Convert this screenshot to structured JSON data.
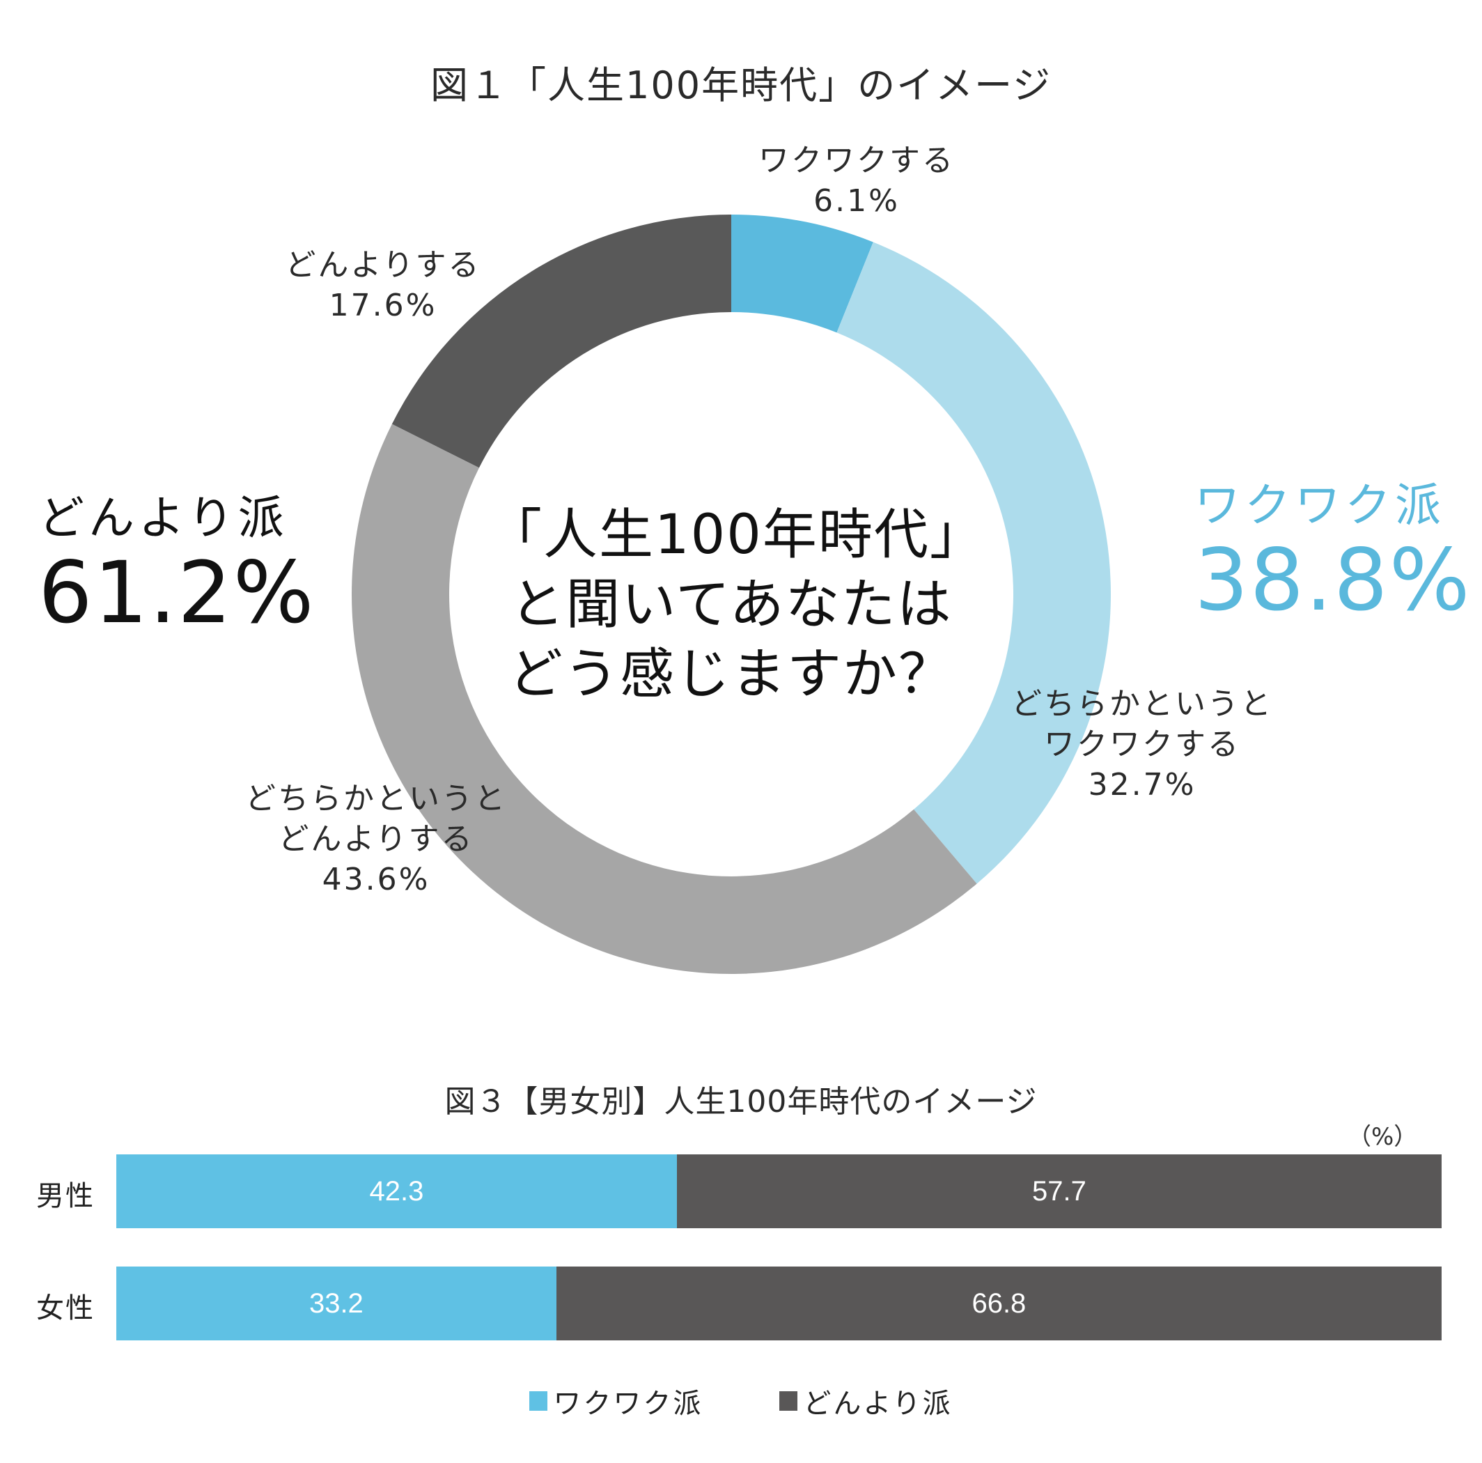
{
  "figure1": {
    "title": "図１「人生100年時代」のイメージ",
    "center_question": [
      "「人生100年時代」",
      "と聞いてあなたは",
      "どう感じますか？"
    ],
    "slices": [
      {
        "label_lines": [
          "ワクワクする"
        ],
        "pct": "6.1%",
        "value": 6.1,
        "color": "#5bbade"
      },
      {
        "label_lines": [
          "どちらかというと",
          "ワクワクする"
        ],
        "pct": "32.7%",
        "value": 32.7,
        "color": "#addcec"
      },
      {
        "label_lines": [
          "どちらかというと",
          "どんよりする"
        ],
        "pct": "43.6%",
        "value": 43.6,
        "color": "#a6a6a6"
      },
      {
        "label_lines": [
          "どんよりする"
        ],
        "pct": "17.6%",
        "value": 17.6,
        "color": "#595959"
      }
    ],
    "groups": {
      "left": {
        "name": "どんより派",
        "pct": "61.2%",
        "color": "#111111"
      },
      "right": {
        "name": "ワクワク派",
        "pct": "38.8%",
        "color": "#5ab8dc"
      }
    }
  },
  "figure3": {
    "title": "図３【男女別】人生100年時代のイメージ",
    "unit": "（%）",
    "rows": [
      {
        "label": "男性",
        "segments": [
          {
            "text": "42.3",
            "value": 42.3
          },
          {
            "text": "57.7",
            "value": 57.7
          }
        ]
      },
      {
        "label": "女性",
        "segments": [
          {
            "text": "33.2",
            "value": 33.2
          },
          {
            "text": "66.8",
            "value": 66.8
          }
        ]
      }
    ],
    "legend": [
      {
        "label": "ワクワク派",
        "color": "#5fc1e4"
      },
      {
        "label": "どんより派",
        "color": "#595757"
      }
    ]
  },
  "chart_data": [
    {
      "type": "pie",
      "subtype": "donut",
      "title": "図１「人生100年時代」のイメージ",
      "center_text": "「人生100年時代」と聞いてあなたはどう感じますか？",
      "categories": [
        "ワクワクする",
        "どちらかというとワクワクする",
        "どちらかというとどんよりする",
        "どんよりする"
      ],
      "values": [
        6.1,
        32.7,
        43.6,
        17.6
      ],
      "colors": [
        "#5bbade",
        "#addcec",
        "#a6a6a6",
        "#595959"
      ],
      "unit": "%",
      "start_angle": "12 o'clock, clockwise",
      "annotations": [
        {
          "text": "ワクワク派 38.8%",
          "position": "right",
          "color": "#5ab8dc"
        },
        {
          "text": "どんより派 61.2%",
          "position": "left",
          "color": "#111111"
        }
      ]
    },
    {
      "type": "bar",
      "orientation": "horizontal",
      "stacked": "100%",
      "title": "図３【男女別】人生100年時代のイメージ",
      "categories": [
        "男性",
        "女性"
      ],
      "series": [
        {
          "name": "ワクワク派",
          "values": [
            42.3,
            33.2
          ],
          "color": "#5fc1e4"
        },
        {
          "name": "どんより派",
          "values": [
            57.7,
            66.8
          ],
          "color": "#595757"
        }
      ],
      "unit_label": "（%）",
      "xlim": [
        0,
        100
      ],
      "grid": false,
      "legend_position": "bottom"
    }
  ]
}
